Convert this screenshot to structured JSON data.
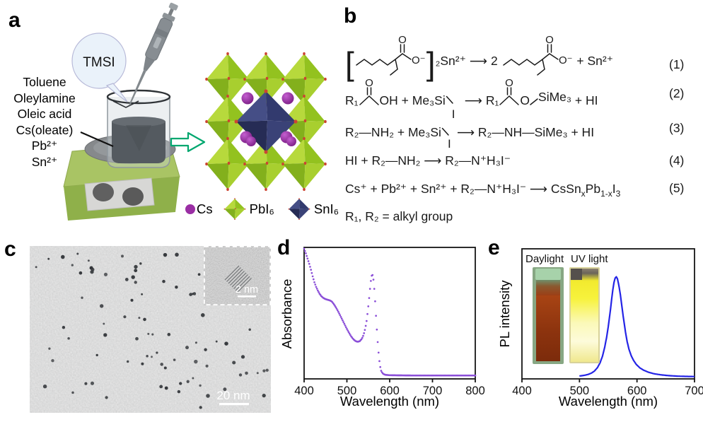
{
  "panels": {
    "a": {
      "label": "a",
      "bubble_label": "TMSI",
      "reagents": [
        "Toluene",
        "Oleylamine",
        "Oleic acid",
        "Cs(oleate)",
        "Pb²⁺",
        "Sn²⁺"
      ],
      "legend": {
        "cs": "Cs",
        "pbi6": "PbI₆",
        "sni6": "SnI₆"
      }
    },
    "b": {
      "label": "b",
      "eq1": {
        "open": "[",
        "close": "]",
        "sub2": "₂",
        "sn": "Sn²⁺",
        "arrow": "⟶",
        "two": "2 ",
        "plus_sn": " + Sn²⁺",
        "O": "O",
        "Ominus": "O⁻",
        "num": "(1)"
      },
      "eq2": {
        "r": "R₁",
        "seg1": "OH + Me₃Si",
        "I": "I",
        "arrow": "⟶",
        "r2": "R₁",
        "o": "O",
        "si": "SiMe₃",
        "tail": " + HI",
        "O": "O",
        "num": "(2)"
      },
      "eq3": {
        "seg1": "R₂—NH₂ + Me₃Si",
        "I": "I",
        "seg2": "⟶ R₂—NH—SiMe₃ + HI",
        "num": "(3)"
      },
      "eq4": {
        "text": "HI + R₂—NH₂ ⟶ R₂—N⁺H₃I⁻",
        "num": "(4)"
      },
      "eq5": {
        "pre": "Cs⁺ + Pb²⁺ + Sn²⁺ + R₂—N⁺H₃I⁻ ⟶ CsSn",
        "sub_x": "x",
        "mid": "Pb",
        "sub_1x": "1-x",
        "post": "I",
        "sub_3": "3",
        "num": "(5)"
      },
      "note": "R₁, R₂ = alkyl group"
    },
    "c": {
      "label": "c",
      "scalebar": "20 nm",
      "inset_scalebar": "2 nm"
    },
    "d": {
      "label": "d"
    },
    "e": {
      "label": "e",
      "inset": {
        "daylight": "Daylight",
        "uv": "UV light"
      }
    }
  },
  "colors": {
    "arrow_green": "#00a76f",
    "pbi6_green": "#93c21f",
    "sni6_navy": "#2e3566",
    "cs_purple": "#9a2ea4",
    "absorbance_curve": "#8b4fd8",
    "pl_curve": "#2424e6"
  },
  "chart_data": [
    {
      "id": "chart-d",
      "type": "scatter",
      "xlabel": "Wavelength (nm)",
      "ylabel": "Absorbance",
      "xlim": [
        400,
        800
      ],
      "xticks": [
        400,
        500,
        600,
        700,
        800
      ],
      "ylim": [
        0,
        1
      ],
      "color": "#8b4fd8",
      "marker_px": 1.35,
      "legend_position": "none",
      "grid": false,
      "series": [
        {
          "name": "absorbance",
          "points": [
            [
              400,
              0.99
            ],
            [
              404,
              0.955
            ],
            [
              408,
              0.915
            ],
            [
              412,
              0.875
            ],
            [
              416,
              0.83
            ],
            [
              420,
              0.78
            ],
            [
              424,
              0.735
            ],
            [
              428,
              0.7
            ],
            [
              432,
              0.672
            ],
            [
              436,
              0.648
            ],
            [
              440,
              0.63
            ],
            [
              445,
              0.615
            ],
            [
              450,
              0.607
            ],
            [
              455,
              0.602
            ],
            [
              460,
              0.597
            ],
            [
              465,
              0.588
            ],
            [
              470,
              0.566
            ],
            [
              475,
              0.54
            ],
            [
              480,
              0.51
            ],
            [
              485,
              0.478
            ],
            [
              490,
              0.445
            ],
            [
              495,
              0.412
            ],
            [
              500,
              0.38
            ],
            [
              505,
              0.35
            ],
            [
              510,
              0.323
            ],
            [
              515,
              0.302
            ],
            [
              520,
              0.288
            ],
            [
              525,
              0.282
            ],
            [
              530,
              0.287
            ],
            [
              535,
              0.305
            ],
            [
              539,
              0.335
            ],
            [
              543,
              0.385
            ],
            [
              546,
              0.44
            ],
            [
              549,
              0.52
            ],
            [
              552,
              0.615
            ],
            [
              554,
              0.685
            ],
            [
              556,
              0.745
            ],
            [
              558,
              0.785
            ],
            [
              560,
              0.79
            ],
            [
              562,
              0.755
            ],
            [
              564,
              0.685
            ],
            [
              566,
              0.59
            ],
            [
              568,
              0.48
            ],
            [
              570,
              0.375
            ],
            [
              572,
              0.28
            ],
            [
              574,
              0.2
            ],
            [
              576,
              0.135
            ],
            [
              578,
              0.09
            ],
            [
              580,
              0.062
            ],
            [
              583,
              0.044
            ],
            [
              586,
              0.036
            ],
            [
              590,
              0.031
            ],
            [
              600,
              0.028
            ],
            [
              620,
              0.027
            ],
            [
              650,
              0.026
            ],
            [
              700,
              0.026
            ],
            [
              750,
              0.026
            ],
            [
              800,
              0.026
            ]
          ]
        }
      ]
    },
    {
      "id": "chart-e",
      "type": "line",
      "xlabel": "Wavelength (nm)",
      "ylabel": "PL intensity",
      "xlim": [
        400,
        700
      ],
      "xticks": [
        400,
        500,
        600,
        700
      ],
      "ylim": [
        0,
        1
      ],
      "color": "#2424e6",
      "stroke_px": 2.2,
      "legend_position": "none",
      "grid": false,
      "series": [
        {
          "name": "pl",
          "points": [
            [
              500,
              0.022
            ],
            [
              508,
              0.027
            ],
            [
              515,
              0.034
            ],
            [
              521,
              0.045
            ],
            [
              526,
              0.06
            ],
            [
              531,
              0.085
            ],
            [
              536,
              0.125
            ],
            [
              540,
              0.175
            ],
            [
              544,
              0.245
            ],
            [
              547,
              0.315
            ],
            [
              550,
              0.4
            ],
            [
              553,
              0.5
            ],
            [
              556,
              0.615
            ],
            [
              558,
              0.685
            ],
            [
              560,
              0.74
            ],
            [
              562,
              0.775
            ],
            [
              564,
              0.785
            ],
            [
              566,
              0.77
            ],
            [
              568,
              0.73
            ],
            [
              571,
              0.65
            ],
            [
              574,
              0.55
            ],
            [
              577,
              0.45
            ],
            [
              580,
              0.36
            ],
            [
              583,
              0.285
            ],
            [
              586,
              0.228
            ],
            [
              590,
              0.178
            ],
            [
              594,
              0.142
            ],
            [
              599,
              0.11
            ],
            [
              605,
              0.085
            ],
            [
              612,
              0.066
            ],
            [
              620,
              0.051
            ],
            [
              630,
              0.039
            ],
            [
              642,
              0.031
            ],
            [
              655,
              0.025
            ],
            [
              670,
              0.021
            ],
            [
              685,
              0.019
            ],
            [
              700,
              0.018
            ]
          ]
        }
      ]
    }
  ]
}
